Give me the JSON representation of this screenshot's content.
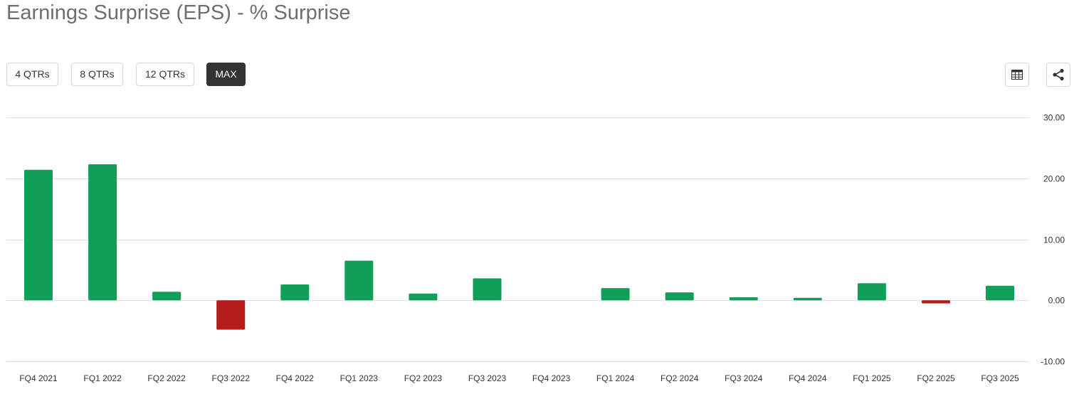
{
  "header": {
    "title": "Earnings Surprise (EPS) - % Surprise"
  },
  "range_buttons": [
    {
      "label": "4 QTRs",
      "active": false
    },
    {
      "label": "8 QTRs",
      "active": false
    },
    {
      "label": "12 QTRs",
      "active": false
    },
    {
      "label": "MAX",
      "active": true
    }
  ],
  "toolbar": {
    "table_icon": "table-icon",
    "share_icon": "share-icon"
  },
  "colors": {
    "positive": "#119e58",
    "negative": "#b41c1c",
    "grid": "#dedede",
    "active_button": "#333333"
  },
  "chart_data": {
    "type": "bar",
    "categories": [
      "FQ4 2021",
      "FQ1 2022",
      "FQ2 2022",
      "FQ3 2022",
      "FQ4 2022",
      "FQ1 2023",
      "FQ2 2023",
      "FQ3 2023",
      "FQ4 2023",
      "FQ1 2024",
      "FQ2 2024",
      "FQ3 2024",
      "FQ4 2024",
      "FQ1 2025",
      "FQ2 2025",
      "FQ3 2025"
    ],
    "values": [
      21.4,
      22.3,
      1.4,
      -4.8,
      2.6,
      6.5,
      1.1,
      3.6,
      0,
      2.0,
      1.3,
      0.5,
      0.4,
      2.8,
      -0.5,
      2.4
    ],
    "title": "Earnings Surprise (EPS) - % Surprise",
    "xlabel": "",
    "ylabel": "",
    "ylim": [
      -10,
      30
    ],
    "yticks": [
      "30.00",
      "20.00",
      "10.00",
      "0.00",
      "-10.00"
    ],
    "ytick_values": [
      30,
      20,
      10,
      0,
      -10
    ],
    "y_axis_side": "right",
    "grid": true,
    "legend": "none"
  }
}
